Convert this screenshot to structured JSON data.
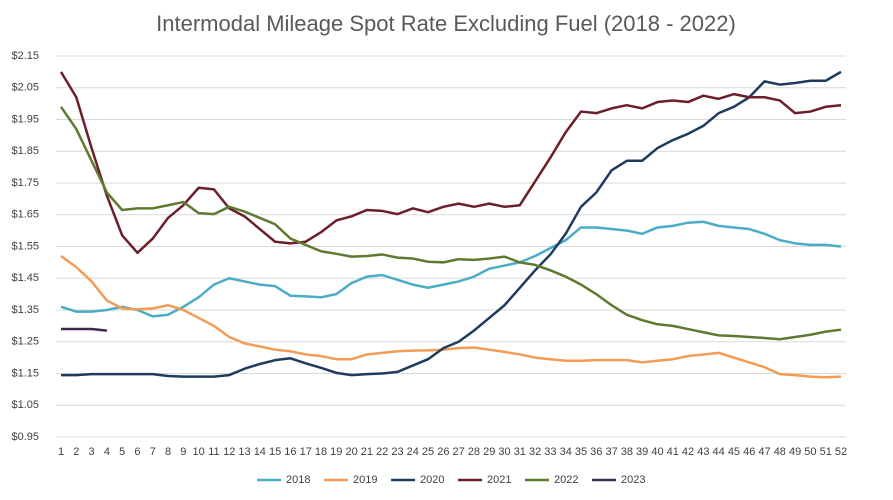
{
  "chart_data": {
    "type": "line",
    "title": "Intermodal Mileage Spot Rate Excluding Fuel (2018 - 2022)",
    "categories": [
      "1",
      "2",
      "3",
      "4",
      "5",
      "6",
      "7",
      "8",
      "9",
      "10",
      "11",
      "12",
      "13",
      "14",
      "15",
      "16",
      "17",
      "18",
      "19",
      "20",
      "21",
      "22",
      "23",
      "24",
      "25",
      "26",
      "27",
      "28",
      "29",
      "30",
      "31",
      "32",
      "33",
      "34",
      "35",
      "36",
      "37",
      "38",
      "39",
      "40",
      "41",
      "42",
      "43",
      "44",
      "45",
      "46",
      "47",
      "48",
      "49",
      "50",
      "51",
      "52"
    ],
    "ylim": [
      0.95,
      2.15
    ],
    "yticks": [
      {
        "value": 0.95,
        "label": "$0.95"
      },
      {
        "value": 1.05,
        "label": "$1.05"
      },
      {
        "value": 1.15,
        "label": "$1.15"
      },
      {
        "value": 1.25,
        "label": "$1.25"
      },
      {
        "value": 1.35,
        "label": "$1.35"
      },
      {
        "value": 1.45,
        "label": "$1.45"
      },
      {
        "value": 1.55,
        "label": "$1.55"
      },
      {
        "value": 1.65,
        "label": "$1.65"
      },
      {
        "value": 1.75,
        "label": "$1.75"
      },
      {
        "value": 1.85,
        "label": "$1.85"
      },
      {
        "value": 1.95,
        "label": "$1.95"
      },
      {
        "value": 2.05,
        "label": "$2.05"
      },
      {
        "value": 2.15,
        "label": "$2.15"
      }
    ],
    "grid": true,
    "legend": "bottom",
    "series": [
      {
        "name": "2018",
        "color": "#4bacc6",
        "values": [
          1.36,
          1.345,
          1.345,
          1.35,
          1.36,
          1.35,
          1.33,
          1.335,
          1.36,
          1.39,
          1.43,
          1.45,
          1.44,
          1.43,
          1.425,
          1.395,
          1.393,
          1.39,
          1.4,
          1.435,
          1.455,
          1.46,
          1.445,
          1.43,
          1.42,
          1.43,
          1.44,
          1.455,
          1.48,
          1.49,
          1.5,
          1.52,
          1.545,
          1.57,
          1.61,
          1.61,
          1.605,
          1.6,
          1.59,
          1.61,
          1.615,
          1.625,
          1.628,
          1.615,
          1.61,
          1.605,
          1.59,
          1.57,
          1.56,
          1.555,
          1.555,
          1.55
        ]
      },
      {
        "name": "2019",
        "color": "#f39c55",
        "values": [
          1.52,
          1.485,
          1.44,
          1.38,
          1.355,
          1.352,
          1.355,
          1.365,
          1.35,
          1.325,
          1.3,
          1.265,
          1.245,
          1.235,
          1.225,
          1.22,
          1.21,
          1.205,
          1.195,
          1.195,
          1.21,
          1.215,
          1.22,
          1.222,
          1.223,
          1.225,
          1.23,
          1.232,
          1.225,
          1.218,
          1.21,
          1.2,
          1.195,
          1.19,
          1.19,
          1.192,
          1.192,
          1.192,
          1.185,
          1.19,
          1.195,
          1.205,
          1.21,
          1.215,
          1.2,
          1.185,
          1.17,
          1.148,
          1.145,
          1.14,
          1.138,
          1.14
        ]
      },
      {
        "name": "2020",
        "color": "#1f3a5f",
        "values": [
          1.145,
          1.145,
          1.148,
          1.148,
          1.148,
          1.148,
          1.148,
          1.142,
          1.14,
          1.14,
          1.14,
          1.145,
          1.165,
          1.18,
          1.192,
          1.198,
          1.182,
          1.168,
          1.152,
          1.145,
          1.148,
          1.15,
          1.155,
          1.175,
          1.195,
          1.23,
          1.25,
          1.285,
          1.325,
          1.365,
          1.42,
          1.475,
          1.525,
          1.59,
          1.675,
          1.72,
          1.79,
          1.82,
          1.82,
          1.86,
          1.885,
          1.905,
          1.93,
          1.97,
          1.99,
          2.02,
          2.07,
          2.06,
          2.065,
          2.072,
          2.072,
          2.1
        ]
      },
      {
        "name": "2021",
        "color": "#6b1f2a",
        "values": [
          2.1,
          2.02,
          1.86,
          1.71,
          1.585,
          1.53,
          1.575,
          1.64,
          1.68,
          1.735,
          1.73,
          1.67,
          1.645,
          1.605,
          1.565,
          1.56,
          1.565,
          1.595,
          1.632,
          1.645,
          1.665,
          1.662,
          1.652,
          1.67,
          1.658,
          1.675,
          1.685,
          1.675,
          1.685,
          1.675,
          1.68,
          1.755,
          1.83,
          1.91,
          1.975,
          1.97,
          1.985,
          1.995,
          1.985,
          2.005,
          2.01,
          2.005,
          2.025,
          2.015,
          2.03,
          2.02,
          2.02,
          2.01,
          1.97,
          1.975,
          1.99,
          1.995
        ]
      },
      {
        "name": "2022",
        "color": "#5e7a2e",
        "values": [
          1.99,
          1.92,
          1.82,
          1.72,
          1.665,
          1.67,
          1.67,
          1.68,
          1.69,
          1.655,
          1.652,
          1.675,
          1.66,
          1.64,
          1.62,
          1.575,
          1.555,
          1.535,
          1.527,
          1.518,
          1.52,
          1.525,
          1.515,
          1.512,
          1.502,
          1.5,
          1.51,
          1.508,
          1.512,
          1.518,
          1.5,
          1.492,
          1.475,
          1.455,
          1.43,
          1.4,
          1.365,
          1.335,
          1.318,
          1.305,
          1.3,
          1.29,
          1.28,
          1.27,
          1.268,
          1.265,
          1.262,
          1.258,
          1.265,
          1.272,
          1.282,
          1.288
        ]
      },
      {
        "name": "2023",
        "color": "#3d2a52",
        "values": [
          1.29,
          1.29,
          1.29,
          1.285,
          null,
          null,
          null,
          null,
          null,
          null,
          null,
          null,
          null,
          null,
          null,
          null,
          null,
          null,
          null,
          null,
          null,
          null,
          null,
          null,
          null,
          null,
          null,
          null,
          null,
          null,
          null,
          null,
          null,
          null,
          null,
          null,
          null,
          null,
          null,
          null,
          null,
          null,
          null,
          null,
          null,
          null,
          null,
          null,
          null,
          null,
          null,
          null
        ]
      }
    ]
  }
}
